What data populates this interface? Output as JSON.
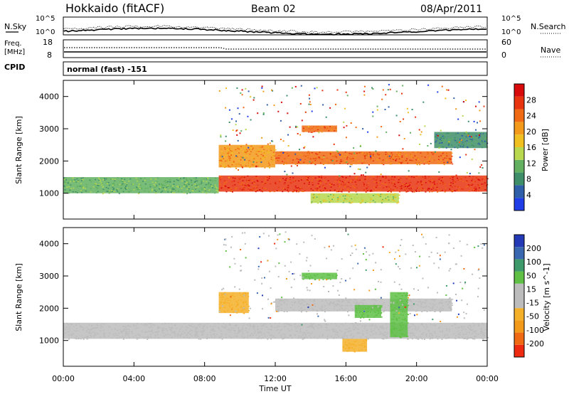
{
  "header": {
    "station": "Hokkaido (fitACF)",
    "beam": "Beam 02",
    "date": "08/Apr/2011"
  },
  "noise_panel": {
    "left_label": "N.Sky",
    "right_label": "N.Search",
    "left_ticks": [
      "10^5",
      "10^0"
    ],
    "right_ticks": [
      "10^5",
      "10^0"
    ]
  },
  "freq_panel": {
    "left_label_line1": "Freq.",
    "left_label_line2": "[MHz]",
    "right_label": "Nave",
    "left_ticks": [
      "18",
      "8"
    ],
    "right_ticks": [
      "60",
      "0"
    ]
  },
  "cpid": {
    "label": "CPID",
    "value": "normal (fast) -151"
  },
  "colors": {
    "power": [
      "#1f3ee8",
      "#2f5fa8",
      "#3f8e6a",
      "#62b060",
      "#b7d84f",
      "#f0c020",
      "#f39a1a",
      "#f06a14",
      "#e8340f",
      "#d90a0a"
    ],
    "velocity": [
      "#2339b6",
      "#3a68b0",
      "#3e9a6a",
      "#5fc045",
      "#bcbcbc",
      "#bcbcbc",
      "#f5b02a",
      "#f39a1a",
      "#f06a14",
      "#ee2a10"
    ]
  },
  "chart_data": [
    {
      "type": "heatmap",
      "quantity": "Power",
      "ylabel": "Slant Range [km]",
      "colorbar_label": "Power [dB]",
      "colorbar_ticks": [
        "4",
        "8",
        "12",
        "16",
        "20",
        "24",
        "28"
      ],
      "x_ticks": [
        "00:00",
        "04:00",
        "08:00",
        "12:00",
        "16:00",
        "20:00",
        "00:00"
      ],
      "y_ticks": [
        "1000",
        "2000",
        "3000",
        "4000"
      ],
      "xlim_hours": [
        0,
        24
      ],
      "ylim_km": [
        200,
        4500
      ],
      "bands": [
        {
          "t": [
            0,
            8.8
          ],
          "r_lo": 1000,
          "r_hi": 1500,
          "power_db": 12
        },
        {
          "t": [
            8.8,
            24
          ],
          "r_lo": 1050,
          "r_hi": 1550,
          "power_db": 26
        },
        {
          "t": [
            8.8,
            12
          ],
          "r_lo": 1800,
          "r_hi": 2500,
          "power_db": 20
        },
        {
          "t": [
            12,
            22
          ],
          "r_lo": 1900,
          "r_hi": 2300,
          "power_db": 22
        },
        {
          "t": [
            13.5,
            15.5
          ],
          "r_lo": 2900,
          "r_hi": 3100,
          "power_db": 22
        },
        {
          "t": [
            14,
            19
          ],
          "r_lo": 700,
          "r_hi": 1000,
          "power_db": 14
        },
        {
          "t": [
            21,
            24
          ],
          "r_lo": 2400,
          "r_hi": 2900,
          "power_db": 8
        }
      ]
    },
    {
      "type": "heatmap",
      "quantity": "Velocity",
      "ylabel": "Slant Range [km]",
      "colorbar_label": "Velocity [m s^-1]",
      "colorbar_ticks": [
        "200",
        "100",
        "50",
        "15",
        "-15",
        "-50",
        "-100",
        "-200"
      ],
      "x_ticks": [
        "00:00",
        "04:00",
        "08:00",
        "12:00",
        "16:00",
        "20:00",
        "00:00"
      ],
      "y_ticks": [
        "1000",
        "2000",
        "3000",
        "4000"
      ],
      "xlabel": "Time UT",
      "xlim_hours": [
        0,
        24
      ],
      "ylim_km": [
        200,
        4500
      ],
      "bands": [
        {
          "t": [
            0,
            24
          ],
          "r_lo": 1050,
          "r_hi": 1550,
          "velocity": 0
        },
        {
          "t": [
            12,
            22
          ],
          "r_lo": 1900,
          "r_hi": 2300,
          "velocity": 0
        },
        {
          "t": [
            13.5,
            15.5
          ],
          "r_lo": 2900,
          "r_hi": 3100,
          "velocity": 60
        },
        {
          "t": [
            15.8,
            17.2
          ],
          "r_lo": 650,
          "r_hi": 1050,
          "velocity": -60
        },
        {
          "t": [
            16.5,
            18
          ],
          "r_lo": 1700,
          "r_hi": 2100,
          "velocity": 60
        },
        {
          "t": [
            18.5,
            19.5
          ],
          "r_lo": 1100,
          "r_hi": 2500,
          "velocity": 60
        },
        {
          "t": [
            8.8,
            10.5
          ],
          "r_lo": 1850,
          "r_hi": 2500,
          "velocity": -60
        }
      ]
    }
  ]
}
